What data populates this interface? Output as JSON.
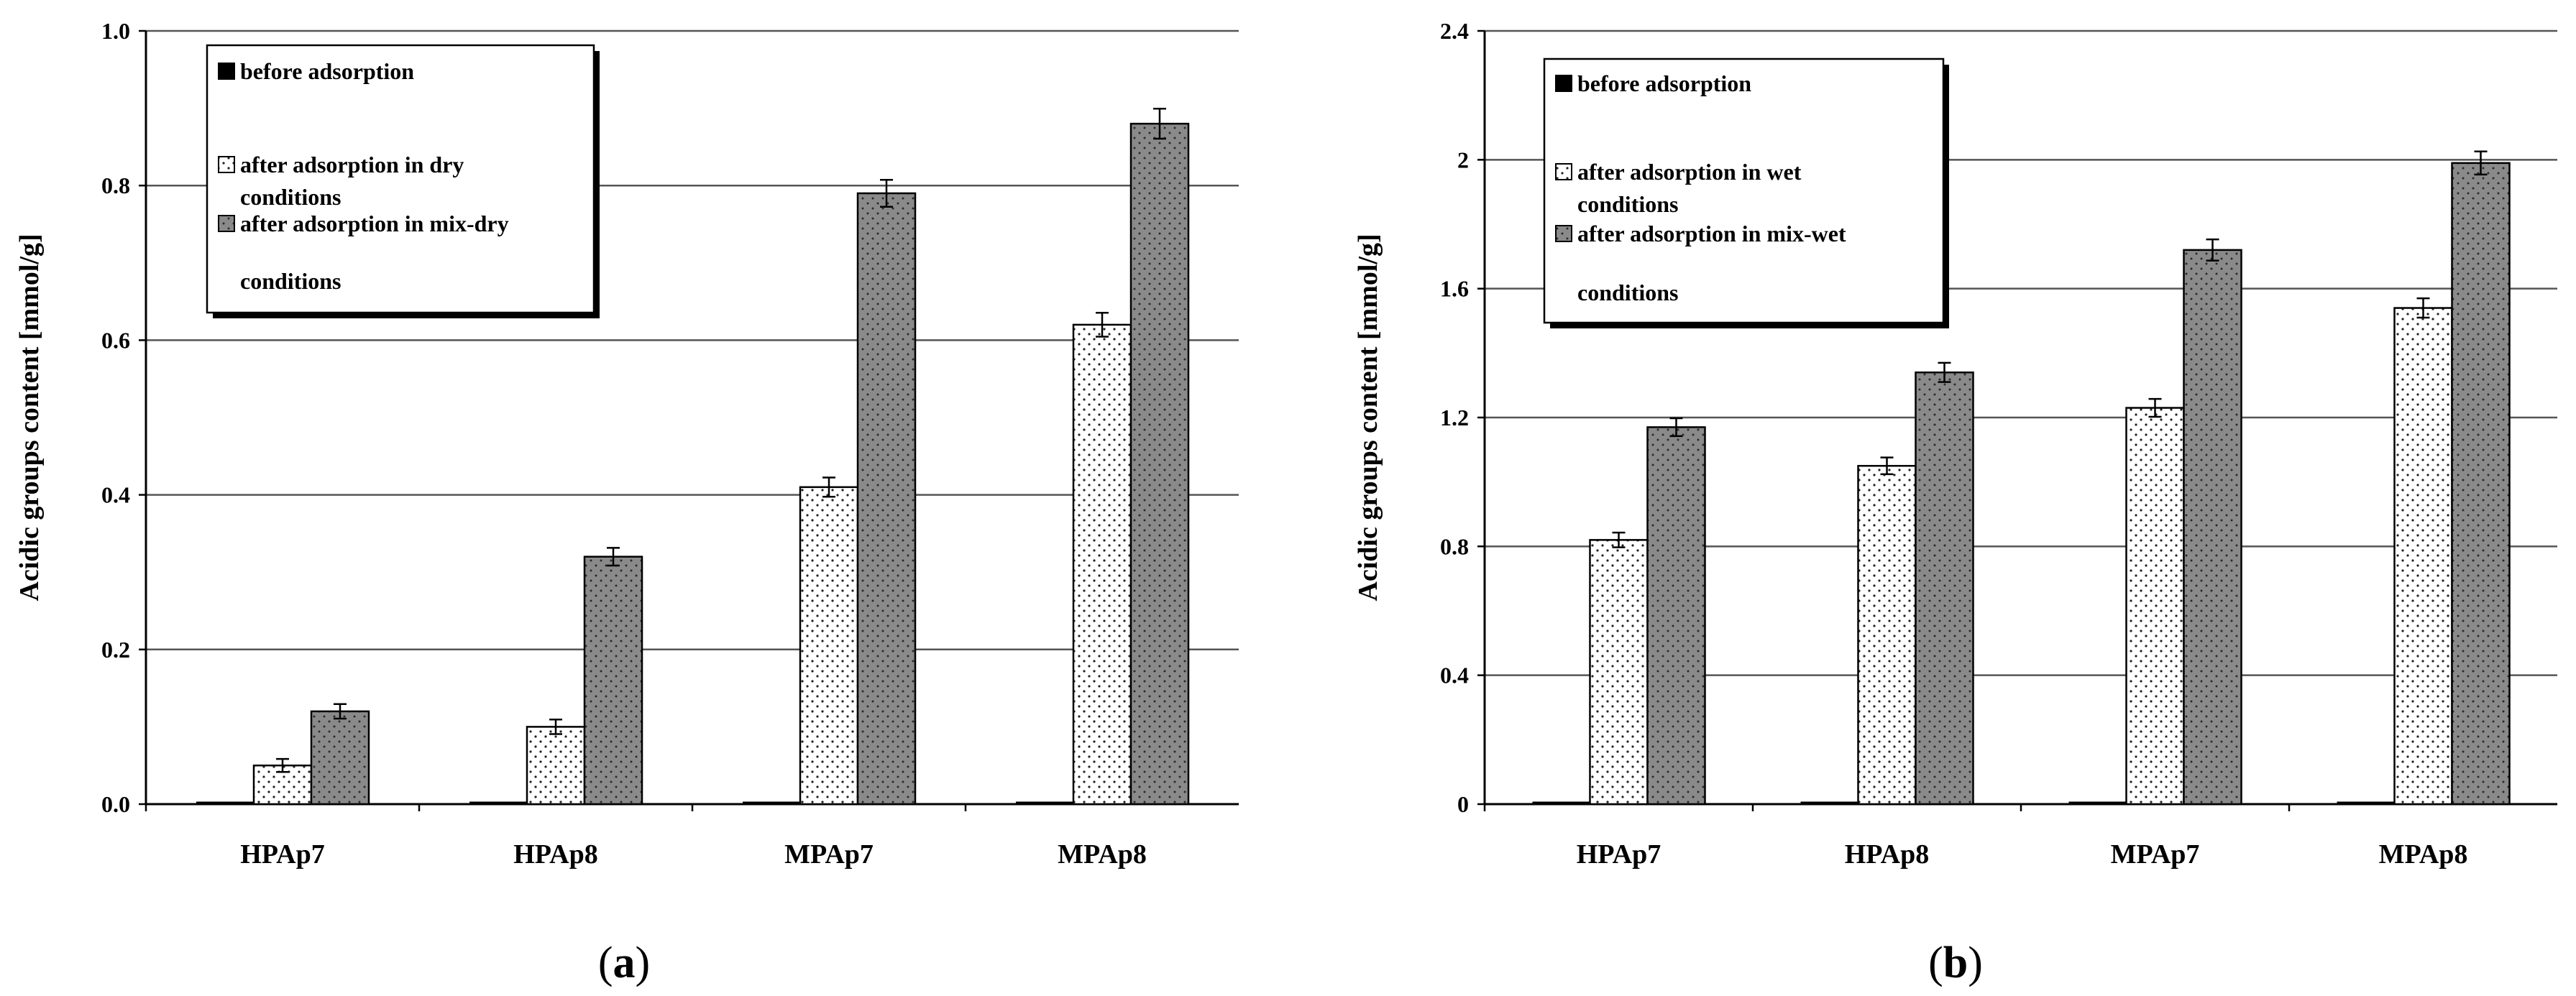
{
  "chart_data": [
    {
      "type": "bar",
      "panel_label": "a",
      "ylabel": "Acidic  groups content [mmol/g]",
      "ylim": [
        0,
        1.0
      ],
      "y_ticks": [
        "0.0",
        "0.2",
        "0.4",
        "0.6",
        "0.8",
        "1.0"
      ],
      "y_tick_values": [
        0,
        0.2,
        0.4,
        0.6,
        0.8,
        1.0
      ],
      "categories": [
        "HPAp7",
        "HPAp8",
        "MPAp7",
        "MPAp8"
      ],
      "series": [
        {
          "name": "before adsorption",
          "values": [
            0,
            0,
            0,
            0
          ],
          "errors": [
            0,
            0,
            0,
            0
          ]
        },
        {
          "name": "after adsorption in dry conditions",
          "values": [
            0.05,
            0.1,
            0.41,
            0.62
          ],
          "errors": [
            0.001,
            0.002,
            0.005,
            0.008
          ]
        },
        {
          "name": "after adsorption in mix-dry conditions",
          "values": [
            0.12,
            0.32,
            0.79,
            0.88
          ],
          "errors": [
            0.002,
            0.004,
            0.01,
            0.012
          ]
        }
      ],
      "legend": [
        [
          "before adsorption"
        ],
        [
          "after adsorption in dry",
          "conditions"
        ],
        [
          "after adsorption in mix-dry",
          "conditions"
        ]
      ]
    },
    {
      "type": "bar",
      "panel_label": "b",
      "ylabel": "Acidic  groups content [mmol/g]",
      "ylim": [
        0,
        2.4
      ],
      "y_ticks": [
        "0",
        "0.4",
        "0.8",
        "1.2",
        "1.6",
        "2",
        "2.4"
      ],
      "y_tick_values": [
        0,
        0.4,
        0.8,
        1.2,
        1.6,
        2.0,
        2.4
      ],
      "categories": [
        "HPAp7",
        "HPAp8",
        "MPAp7",
        "MPAp8"
      ],
      "series": [
        {
          "name": "before adsorption",
          "values": [
            0,
            0,
            0,
            0
          ],
          "errors": [
            0,
            0,
            0,
            0
          ]
        },
        {
          "name": "after adsorption in wet conditions",
          "values": [
            0.82,
            1.05,
            1.23,
            1.54
          ],
          "errors": [
            0.005,
            0.008,
            0.01,
            0.012
          ]
        },
        {
          "name": "after adsorption in mix-wet conditions",
          "values": [
            1.17,
            1.34,
            1.72,
            1.99
          ],
          "errors": [
            0.01,
            0.012,
            0.015,
            0.018
          ]
        }
      ],
      "legend": [
        [
          "before adsorption"
        ],
        [
          "after adsorption in wet",
          "conditions"
        ],
        [
          "after adsorption in mix-wet",
          "conditions"
        ]
      ]
    }
  ]
}
